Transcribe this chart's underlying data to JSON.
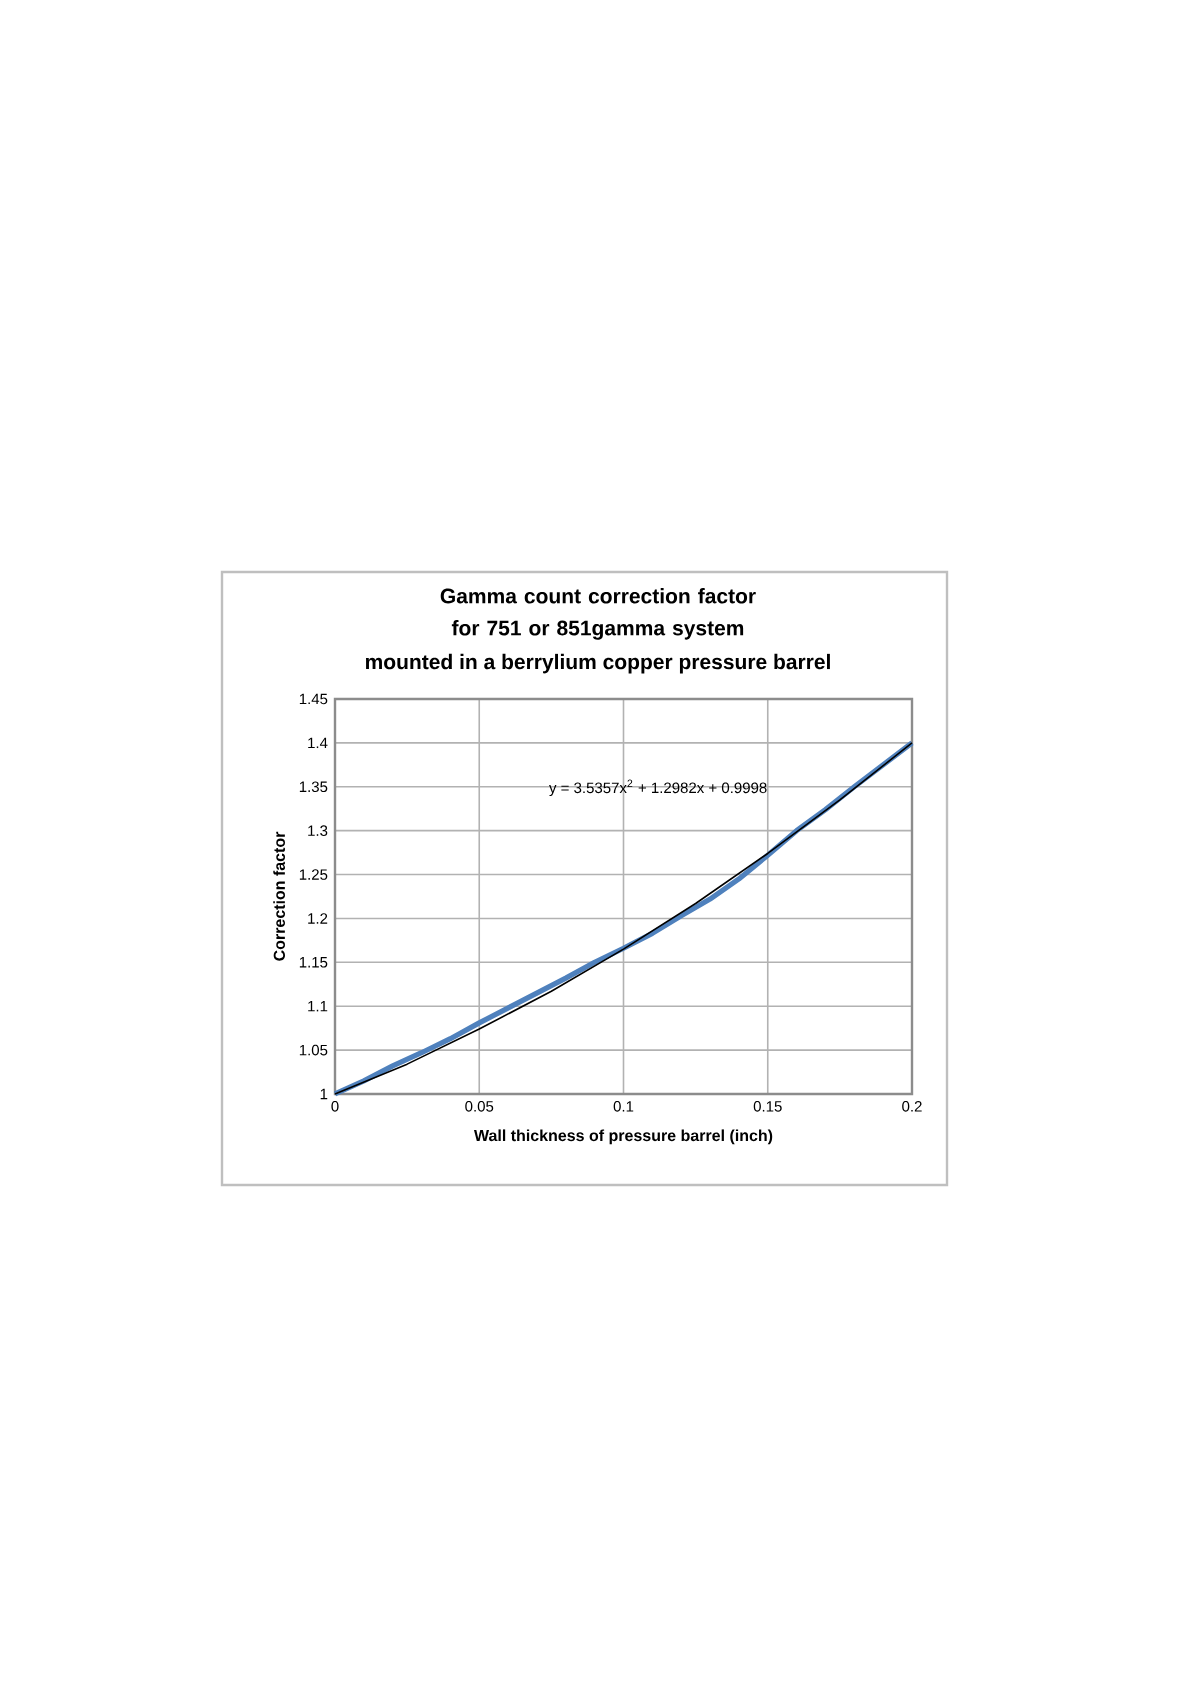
{
  "chart_data": {
    "type": "line",
    "title": "Gamma count correction factor  for 751 or 851gamma system",
    "subtitle": "mounted in a berrylium copper pressure barrel",
    "xlabel": "Wall thickness of pressure barrel (inch)",
    "ylabel": "Correction factor",
    "annotations": [
      "y = 3.5357x$^{2}$ + 1.2982x + 0.9998"
    ],
    "series": [
      {
        "color": "#4f81bd",
        "x": [
          0,
          0.01,
          0.02,
          0.03,
          0.04,
          0.05,
          0.06,
          0.07,
          0.08,
          0.09,
          0.1,
          0.11,
          0.12,
          0.13,
          0.14,
          0.15,
          0.16,
          0.17,
          0.18,
          0.19,
          0.2
        ],
        "values": [
          1.0,
          1.015,
          1.032,
          1.047,
          1.063,
          1.081,
          1.098,
          1.115,
          1.132,
          1.15,
          1.166,
          1.183,
          1.203,
          1.222,
          1.245,
          1.272,
          1.3,
          1.324,
          1.35,
          1.375,
          1.4
        ]
      },
      {
        "color": "#000000",
        "x": [
          0,
          0.025,
          0.05,
          0.075,
          0.1,
          0.125,
          0.15,
          0.175,
          0.2
        ],
        "values": [
          1.0,
          1.034,
          1.074,
          1.117,
          1.165,
          1.217,
          1.274,
          1.335,
          1.4
        ]
      }
    ],
    "xlim": [
      0,
      0.2
    ],
    "xticks": [
      0,
      0.05,
      0.1,
      0.15,
      0.2
    ],
    "ylim": [
      1,
      1.45
    ],
    "yticks": [
      1,
      1.05,
      1.1,
      1.15,
      1.2,
      1.25,
      1.3,
      1.35,
      1.4,
      1.45
    ],
    "grid": true,
    "marker": "none",
    "line_style": "solid"
  }
}
